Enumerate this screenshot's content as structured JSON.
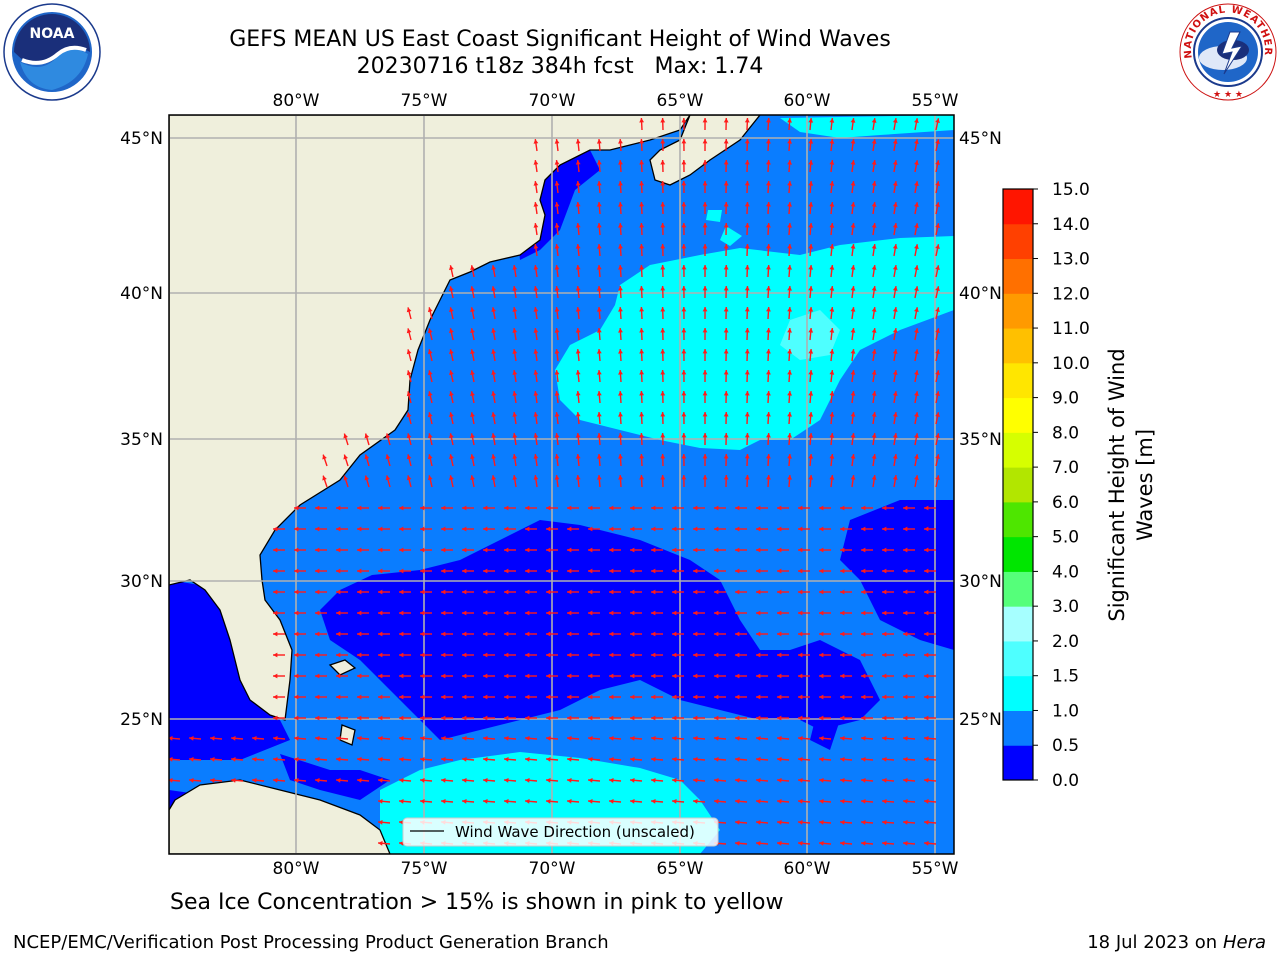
{
  "header": {
    "title_line1": "GEFS MEAN US East Coast Significant Height of Wind Waves",
    "title_line2": "20230716 t18z 384h fcst   Max: 1.74"
  },
  "logos": {
    "left": {
      "name": "noaa-logo",
      "text": "NOAA"
    },
    "right": {
      "name": "nws-logo",
      "ring_text": "NATIONAL WEATHER SERVICE"
    }
  },
  "map": {
    "lon_labels": [
      "80°W",
      "75°W",
      "70°W",
      "65°W",
      "60°W",
      "55°W"
    ],
    "lat_labels": [
      "45°N",
      "40°N",
      "35°N",
      "30°N",
      "25°N"
    ],
    "legend_label": "Wind Wave Direction (unscaled)",
    "colors": {
      "land": "#efefdc",
      "coast": "#000000",
      "grid": "#b0b0b0",
      "arrow": "#ff1a1a"
    }
  },
  "colorbar": {
    "label_line1": "Significant Height of Wind",
    "label_line2": "Waves [m]",
    "ticks": [
      "0.0",
      "0.5",
      "1.0",
      "1.5",
      "2.0",
      "3.0",
      "4.0",
      "5.0",
      "6.0",
      "7.0",
      "8.0",
      "9.0",
      "10.0",
      "11.0",
      "12.0",
      "13.0",
      "14.0",
      "15.0"
    ],
    "colors": [
      "#0000ff",
      "#0a7dff",
      "#00ffff",
      "#4effff",
      "#a6ffff",
      "#55ff7a",
      "#00e600",
      "#4ee600",
      "#b2e600",
      "#d6ff00",
      "#ffff00",
      "#ffe600",
      "#ffc000",
      "#ff9a00",
      "#ff7000",
      "#ff4000",
      "#ff1500"
    ]
  },
  "footer": {
    "note": "Sea Ice Concentration > 15% is shown in pink to yellow",
    "credit_left": "NCEP/EMC/Verification Post Processing Product Generation Branch",
    "credit_right_date": "18 Jul 2023 on",
    "credit_right_host": "Hera"
  }
}
